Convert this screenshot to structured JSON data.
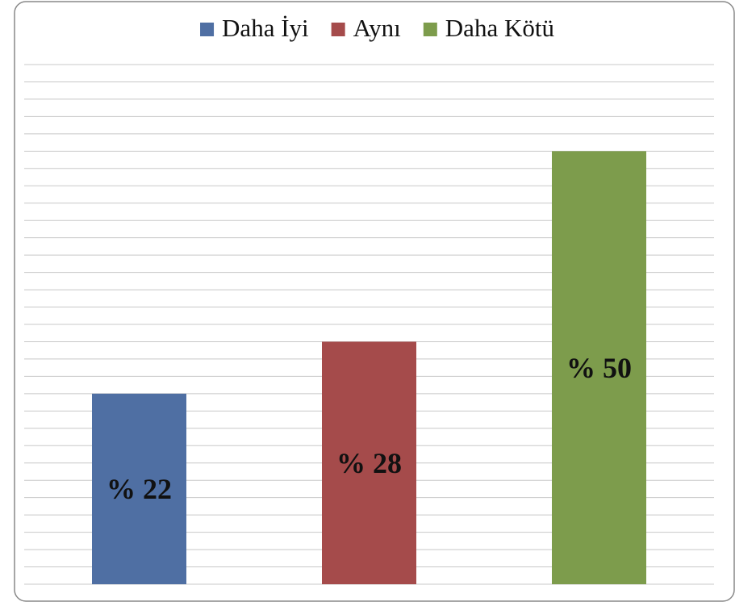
{
  "chart_data": {
    "type": "bar",
    "categories": [
      null
    ],
    "series": [
      {
        "name": "Daha İyi",
        "color": "#4f6fa3",
        "values": [
          22
        ],
        "value_labels": [
          "% 22"
        ]
      },
      {
        "name": "Aynı",
        "color": "#a54b4b",
        "values": [
          28
        ],
        "value_labels": [
          "% 28"
        ]
      },
      {
        "name": "Daha Kötü",
        "color": "#7d9c4c",
        "values": [
          50
        ],
        "value_labels": [
          "% 50"
        ]
      }
    ],
    "ylim": [
      0,
      60
    ],
    "yticks": [
      0,
      2,
      4,
      6,
      8,
      10,
      12,
      14,
      16,
      18,
      20,
      22,
      24,
      26,
      28,
      30,
      32,
      34,
      36,
      38,
      40,
      42,
      44,
      46,
      48,
      50,
      52,
      54,
      56,
      58,
      60
    ],
    "grid": true,
    "legend": "top"
  }
}
